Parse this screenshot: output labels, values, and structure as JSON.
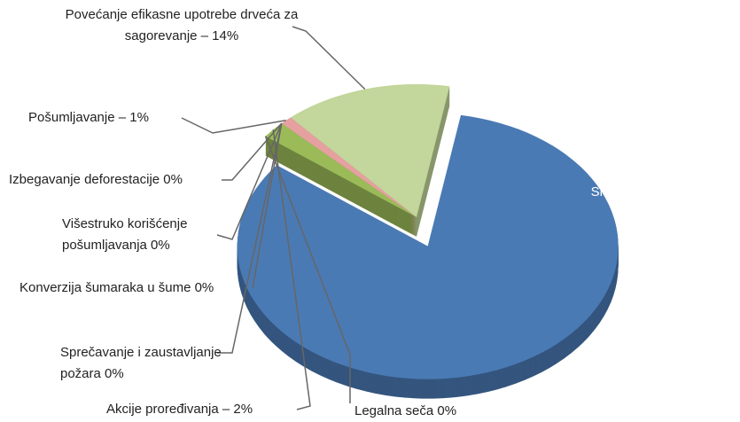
{
  "chart_data": {
    "type": "pie",
    "categories": [
      "Povećanje efikasne upotrebe drveća za sagorevanje – 14%",
      "Pošumljavanje – 1%",
      "Izbegavanje deforestacije 0%",
      "Višestruko korišćenje pošumljavanja 0%",
      "Konverzija šumaraka u šume 0%",
      "Sprečavanje i zaustavljanje požara 0%",
      "Akcije proređivanja – 2%",
      "Legalna seča  0%",
      "Smanjenje ilegalne seče - 81%"
    ],
    "values": [
      14,
      1,
      0,
      0,
      0,
      0,
      2,
      0,
      81
    ],
    "colors": [
      "#c3d69b",
      "#e6a0a0",
      "#d9d9d9",
      "#f79646",
      "#4bacc6",
      "#8064a2",
      "#9bbb59",
      "#953735",
      "#4a7ab4"
    ]
  }
}
